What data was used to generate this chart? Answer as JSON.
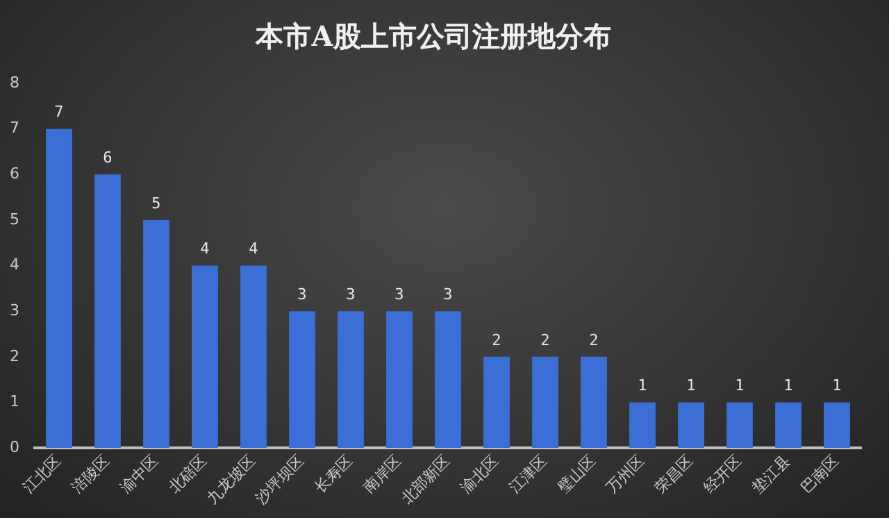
{
  "chart_data": {
    "type": "bar",
    "title": "本市A股上市公司注册地分布",
    "categories": [
      "江北区",
      "涪陵区",
      "渝中区",
      "北碚区",
      "九龙坡区",
      "沙坪坝区",
      "长寿区",
      "南岸区",
      "北部新区",
      "渝北区",
      "江津区",
      "璧山区",
      "万州区",
      "荣昌区",
      "经开区",
      "垫江县",
      "巴南区"
    ],
    "values": [
      7,
      6,
      5,
      4,
      4,
      3,
      3,
      3,
      3,
      2,
      2,
      2,
      1,
      1,
      1,
      1,
      1
    ],
    "color": "#3b6fd6",
    "ylim": [
      0,
      8
    ],
    "yticks": [
      0,
      1,
      2,
      3,
      4,
      5,
      6,
      7,
      8
    ],
    "grid": false,
    "data_labels": true
  }
}
